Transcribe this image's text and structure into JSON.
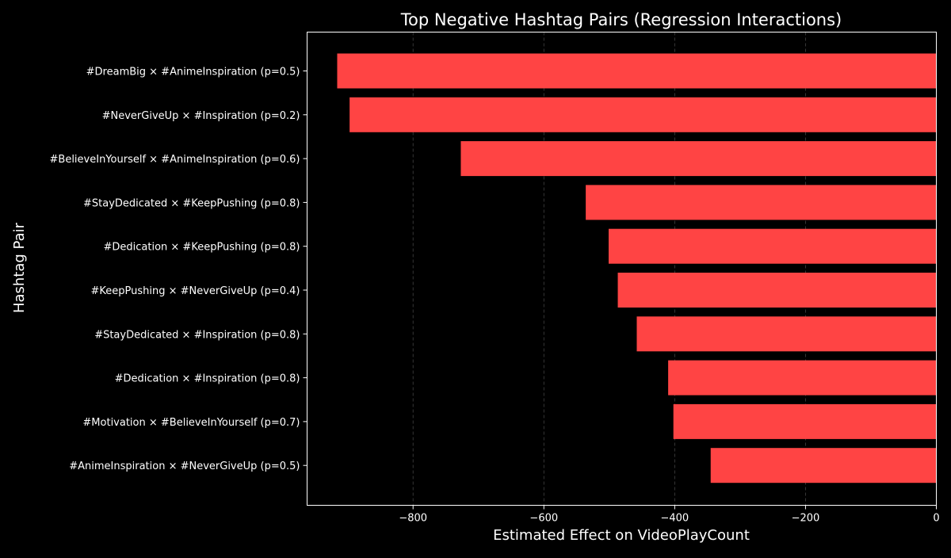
{
  "chart_data": {
    "type": "bar",
    "orientation": "horizontal",
    "title": "Top Negative Hashtag Pairs (Regression Interactions)",
    "xlabel": "Estimated Effect on VideoPlayCount",
    "ylabel": "Hashtag Pair",
    "categories": [
      "#DreamBig × #AnimeInspiration (p=0.5)",
      "#NeverGiveUp × #Inspiration (p=0.2)",
      "#BelieveInYourself × #AnimeInspiration (p=0.6)",
      "#StayDedicated × #KeepPushing (p=0.8)",
      "#Dedication × #KeepPushing (p=0.8)",
      "#KeepPushing × #NeverGiveUp (p=0.4)",
      "#StayDedicated × #Inspiration (p=0.8)",
      "#Dedication × #Inspiration (p=0.8)",
      "#Motivation × #BelieveInYourself (p=0.7)",
      "#AnimeInspiration × #NeverGiveUp (p=0.5)"
    ],
    "values": [
      -916,
      -897,
      -727,
      -536,
      -501,
      -487,
      -458,
      -410,
      -402,
      -345
    ],
    "xlim": [
      -962,
      0
    ],
    "xticks": [
      -800,
      -600,
      -400,
      -200,
      0
    ],
    "xtick_labels": [
      "−800",
      "−600",
      "−400",
      "−200",
      "0"
    ],
    "grid": "x, dashed",
    "bar_color": "#ff4444",
    "background": "#000000"
  }
}
